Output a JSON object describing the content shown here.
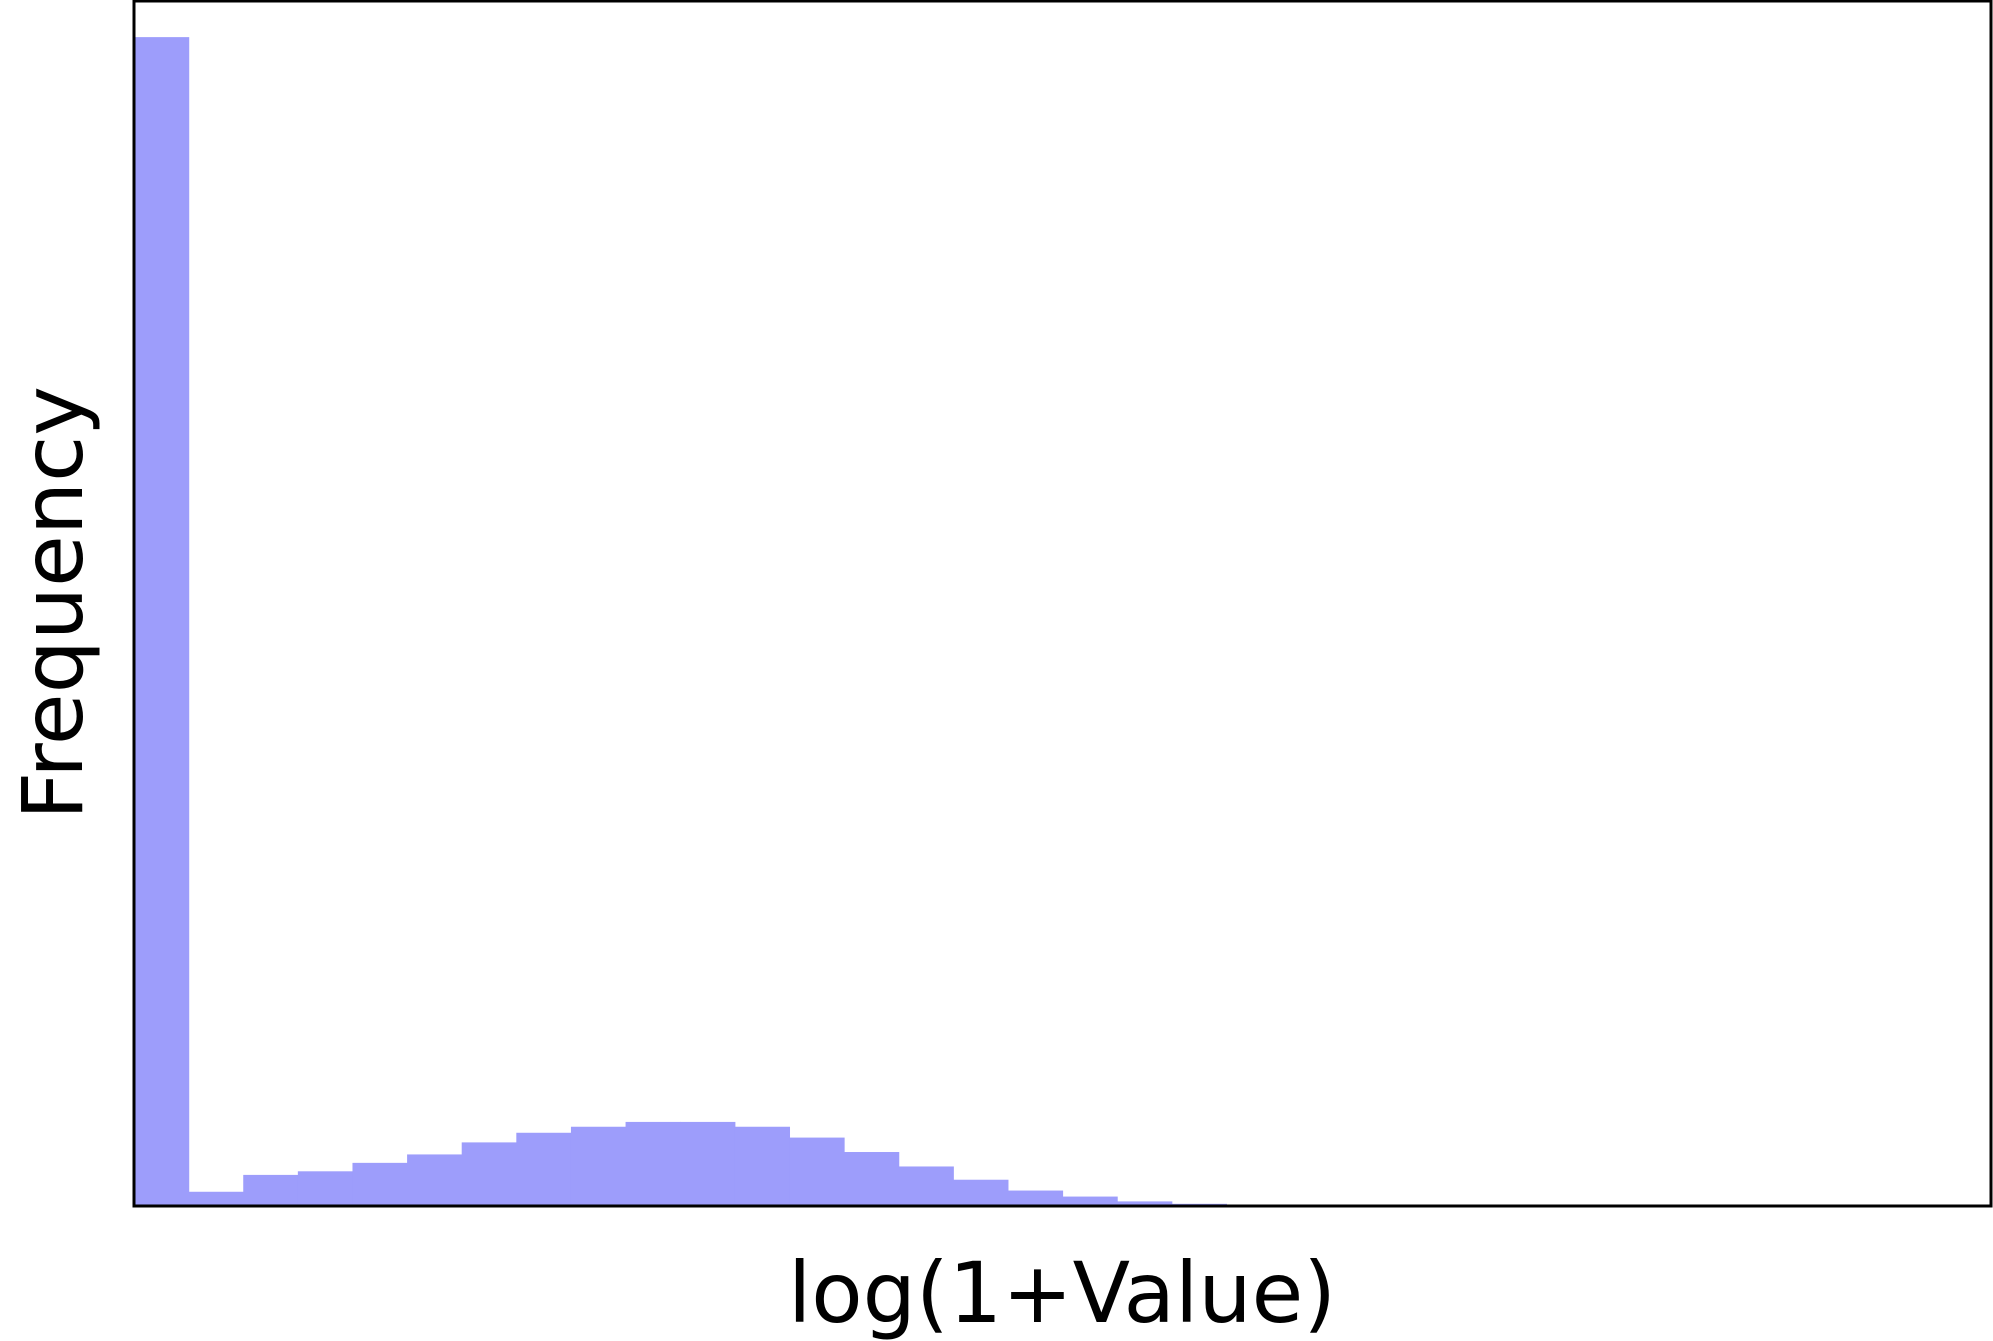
{
  "chart_data": {
    "type": "bar",
    "title": "",
    "xlabel": "log(1+Value)",
    "ylabel": "Frequency",
    "x_ticks_shown": false,
    "y_ticks_shown": false,
    "grid": false,
    "legend": "none",
    "bar_color": "#9d9dfb",
    "ylim": [
      0,
      1000
    ],
    "bin_count": 34,
    "values": [
      970,
      11,
      25,
      28,
      35,
      42,
      52,
      60,
      65,
      69,
      69,
      65,
      56,
      44,
      32,
      21,
      12,
      7,
      3,
      1,
      0,
      0,
      0,
      0,
      0,
      0,
      0,
      0,
      0,
      0,
      0,
      0,
      0,
      0
    ]
  }
}
